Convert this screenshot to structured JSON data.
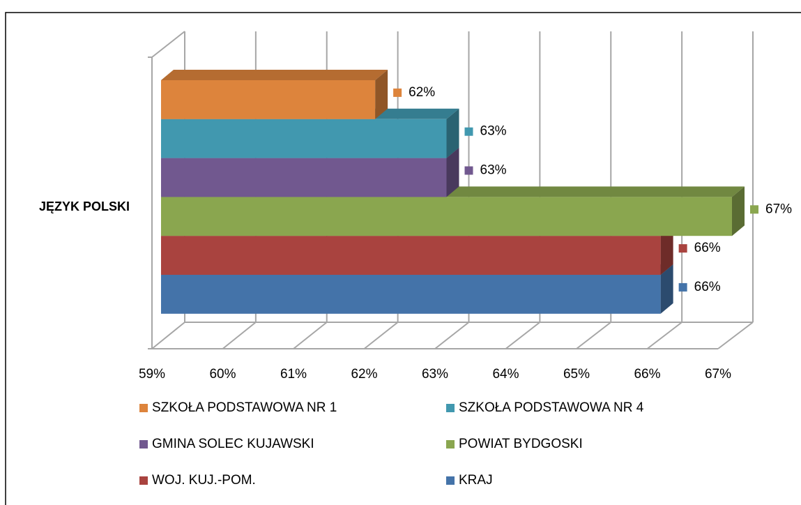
{
  "chart_data": {
    "type": "bar",
    "orientation": "horizontal",
    "categories": [
      "JĘZYK POLSKI"
    ],
    "series": [
      {
        "name": "SZKOŁA PODSTAWOWA NR 1",
        "color": "#dd843c",
        "values": [
          62
        ],
        "value_labels": [
          "62%"
        ]
      },
      {
        "name": "SZKOŁA PODSTAWOWA NR 4",
        "color": "#4198af",
        "values": [
          63
        ],
        "value_labels": [
          "63%"
        ]
      },
      {
        "name": "GMINA SOLEC KUJAWSKI",
        "color": "#71588f",
        "values": [
          63
        ],
        "value_labels": [
          "63%"
        ]
      },
      {
        "name": "POWIAT BYDGOSKI",
        "color": "#8aa64f",
        "values": [
          67
        ],
        "value_labels": [
          "67%"
        ]
      },
      {
        "name": "WOJ. KUJ.-POM.",
        "color": "#a9433f",
        "values": [
          66
        ],
        "value_labels": [
          "66%"
        ]
      },
      {
        "name": "KRAJ",
        "color": "#4473a9",
        "values": [
          66
        ],
        "value_labels": [
          "66%"
        ]
      }
    ],
    "xlim": [
      59,
      67
    ],
    "xticks": [
      {
        "value": 59,
        "label": "59%"
      },
      {
        "value": 60,
        "label": "60%"
      },
      {
        "value": 61,
        "label": "61%"
      },
      {
        "value": 62,
        "label": "62%"
      },
      {
        "value": 63,
        "label": "63%"
      },
      {
        "value": 64,
        "label": "64%"
      },
      {
        "value": 65,
        "label": "65%"
      },
      {
        "value": 66,
        "label": "66%"
      },
      {
        "value": 67,
        "label": "67%"
      }
    ],
    "grid": true,
    "legend": "bottom"
  }
}
